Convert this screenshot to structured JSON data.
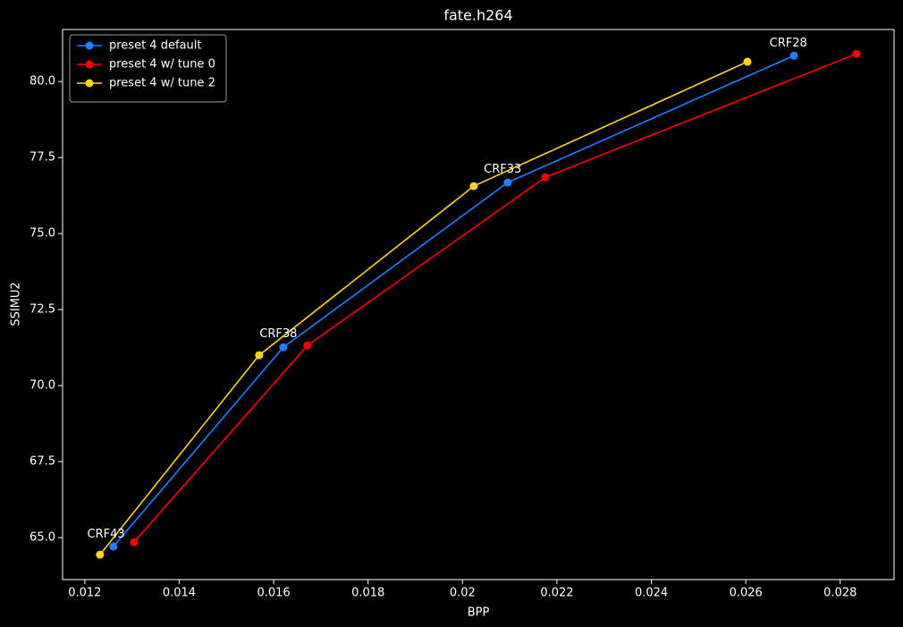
{
  "chart_data": {
    "type": "line",
    "title": "fate.h264",
    "xlabel": "BPP",
    "ylabel": "SSIMU2",
    "xlim": [
      0.01153,
      0.02914
    ],
    "ylim": [
      63.62,
      81.71
    ],
    "xticks": [
      0.012,
      0.014,
      0.016,
      0.018,
      0.02,
      0.022,
      0.024,
      0.026,
      0.028
    ],
    "yticks": [
      {
        "value": 65,
        "label": "65.0"
      },
      {
        "value": 67.5,
        "label": "67.5"
      },
      {
        "value": 70,
        "label": "70.0"
      },
      {
        "value": 72.5,
        "label": "72.5"
      },
      {
        "value": 75,
        "label": "75.0"
      },
      {
        "value": 77.5,
        "label": "77.5"
      },
      {
        "value": 80,
        "label": "80.0"
      }
    ],
    "grid": false,
    "legend": "upper left",
    "series": [
      {
        "name": "preset 4 default",
        "color": "#1f7fff",
        "x": [
          0.012606,
          0.016205,
          0.020958,
          0.027019
        ],
        "values": [
          64.71,
          71.26,
          76.68,
          80.85
        ]
      },
      {
        "name": "preset 4 w/ tune 0",
        "color": "#ff0000",
        "x": [
          0.013042,
          0.016716,
          0.021754,
          0.028345
        ],
        "values": [
          64.85,
          71.32,
          76.85,
          80.91
        ]
      },
      {
        "name": "preset 4 w/ tune 2",
        "color": "#ffd21f",
        "x": [
          0.012322,
          0.015693,
          0.020239,
          0.026034
        ],
        "values": [
          64.44,
          71.0,
          76.56,
          80.65
        ]
      }
    ],
    "annotations": [
      {
        "text": "CRF43",
        "x": 0.01245,
        "y": 65.1
      },
      {
        "text": "CRF38",
        "x": 0.0161,
        "y": 71.7
      },
      {
        "text": "CRF33",
        "x": 0.02085,
        "y": 77.1
      },
      {
        "text": "CRF28",
        "x": 0.0269,
        "y": 81.25
      }
    ]
  }
}
